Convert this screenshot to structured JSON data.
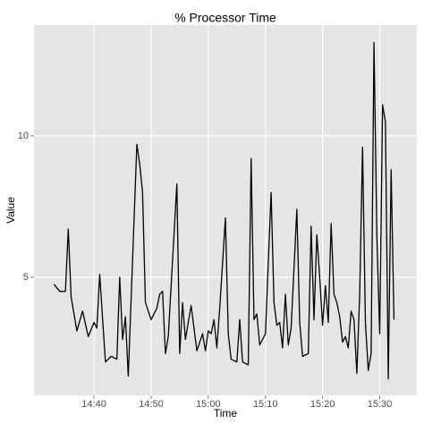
{
  "chart_data": {
    "type": "line",
    "title": "% Processor Time",
    "x_label": "Time",
    "y_label": "Value",
    "x": [
      "14:33:00",
      "14:34:00",
      "14:35:00",
      "14:35:30",
      "14:36:00",
      "14:37:00",
      "14:38:00",
      "14:39:00",
      "14:40:00",
      "14:40:30",
      "14:41:00",
      "14:42:00",
      "14:43:00",
      "14:44:00",
      "14:44:30",
      "14:45:00",
      "14:45:30",
      "14:46:00",
      "14:47:30",
      "14:48:00",
      "14:48:30",
      "14:49:00",
      "14:50:00",
      "14:51:00",
      "14:51:30",
      "14:52:00",
      "14:52:30",
      "14:53:00",
      "14:54:30",
      "14:55:00",
      "14:55:30",
      "14:56:00",
      "14:57:00",
      "14:58:00",
      "14:59:00",
      "14:59:30",
      "15:00:00",
      "15:00:30",
      "15:01:00",
      "15:01:30",
      "15:02:00",
      "15:03:00",
      "15:03:30",
      "15:04:00",
      "15:05:00",
      "15:05:30",
      "15:06:00",
      "15:07:00",
      "15:07:30",
      "15:08:00",
      "15:08:30",
      "15:09:00",
      "15:10:00",
      "15:11:00",
      "15:11:30",
      "15:12:00",
      "15:12:30",
      "15:13:00",
      "15:13:30",
      "15:14:00",
      "15:14:30",
      "15:15:30",
      "15:16:00",
      "15:16:30",
      "15:17:30",
      "15:18:00",
      "15:18:30",
      "15:19:00",
      "15:19:30",
      "15:20:00",
      "15:20:30",
      "15:21:00",
      "15:21:30",
      "15:22:00",
      "15:22:30",
      "15:23:00",
      "15:23:30",
      "15:24:00",
      "15:24:30",
      "15:25:00",
      "15:25:30",
      "15:26:00",
      "15:26:30",
      "15:27:00",
      "15:27:30",
      "15:28:00",
      "15:28:30",
      "15:29:00",
      "15:29:30",
      "15:30:00",
      "15:30:30",
      "15:31:00",
      "15:31:30",
      "15:32:00",
      "15:32:30"
    ],
    "series": [
      {
        "name": "% Processor Time",
        "color": "#000000",
        "values": [
          4.75,
          4.5,
          4.5,
          6.7,
          4.3,
          3.1,
          3.8,
          2.9,
          3.4,
          3.2,
          5.1,
          2.0,
          2.2,
          2.1,
          5.0,
          2.8,
          3.6,
          1.5,
          9.7,
          9.0,
          8.0,
          4.1,
          3.5,
          3.9,
          4.4,
          4.5,
          2.3,
          2.9,
          8.3,
          2.3,
          4.1,
          2.8,
          4.0,
          2.4,
          3.0,
          2.4,
          3.1,
          3.0,
          3.5,
          2.5,
          3.9,
          7.1,
          3.0,
          2.1,
          2.0,
          3.5,
          2.0,
          1.9,
          9.2,
          3.5,
          3.7,
          2.6,
          3.0,
          8.0,
          4.1,
          3.3,
          3.4,
          2.5,
          4.4,
          2.6,
          3.2,
          7.4,
          3.4,
          2.2,
          2.3,
          6.8,
          3.5,
          6.5,
          5.0,
          3.3,
          4.7,
          3.4,
          6.9,
          4.4,
          4.1,
          3.6,
          2.7,
          2.9,
          2.5,
          3.8,
          3.5,
          1.6,
          4.4,
          9.6,
          3.4,
          1.7,
          2.3,
          13.3,
          6.5,
          3.0,
          11.1,
          10.5,
          1.4,
          8.8,
          3.5
        ]
      }
    ],
    "xlim": [
      "14:29:30",
      "15:36:30"
    ],
    "xticks": [
      "14:40",
      "14:50",
      "15:00",
      "15:10",
      "15:20",
      "15:30"
    ],
    "ylim": [
      0.82,
      13.92
    ],
    "yticks": [
      5,
      10
    ],
    "grid": true
  }
}
